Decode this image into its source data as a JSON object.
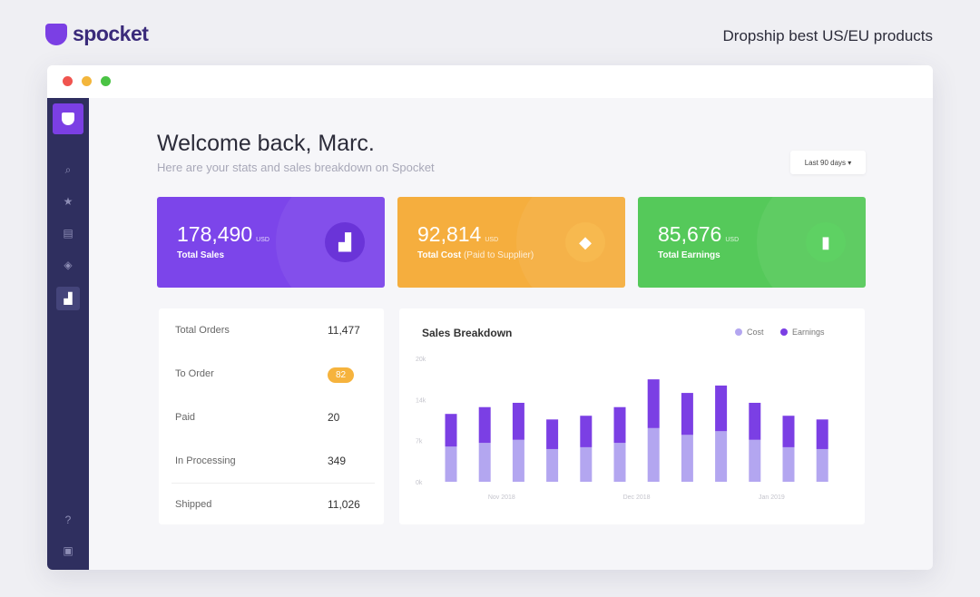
{
  "brand": {
    "name": "spocket",
    "tagline": "Dropship best US/EU products"
  },
  "sidebar": {
    "items": [
      {
        "icon": "search-icon"
      },
      {
        "icon": "star-icon"
      },
      {
        "icon": "catalog-icon"
      },
      {
        "icon": "tag-icon"
      },
      {
        "icon": "chart-icon",
        "active": true
      },
      {
        "icon": "help-icon"
      },
      {
        "icon": "store-icon"
      }
    ]
  },
  "header": {
    "title": "Welcome back, Marc.",
    "subtitle": "Here are your stats and sales breakdown on Spocket",
    "range": "Last 90 days ▾"
  },
  "cards": [
    {
      "value": "178,490",
      "unit": "USD",
      "label": "Total Sales",
      "note": "",
      "color": "#7c45ea",
      "icon": "bar-chart-icon"
    },
    {
      "value": "92,814",
      "unit": "USD",
      "label": "Total Cost",
      "note": "(Paid to Supplier)",
      "color": "#f5ae3e",
      "icon": "tag-icon"
    },
    {
      "value": "85,676",
      "unit": "USD",
      "label": "Total Earnings",
      "note": "",
      "color": "#55c95a",
      "icon": "wallet-icon"
    }
  ],
  "orders": [
    {
      "label": "Total Orders",
      "value": "11,477"
    },
    {
      "label": "To Order",
      "value": "82",
      "badge": true
    },
    {
      "label": "Paid",
      "value": "20"
    },
    {
      "label": "In Processing",
      "value": "349"
    },
    {
      "label": "Shipped",
      "value": "11,026"
    }
  ],
  "chart_data": {
    "type": "bar",
    "stacked": true,
    "title": "Sales Breakdown",
    "legend": "top-right",
    "yticks": [
      "0k",
      "7k",
      "14k",
      "20k"
    ],
    "ylim": [
      0,
      20
    ],
    "xlabels": [
      {
        "label": "Nov 2018",
        "index": 1.5
      },
      {
        "label": "Dec 2018",
        "index": 5.5
      },
      {
        "label": "Jan 2019",
        "index": 9.5
      }
    ],
    "series": [
      {
        "name": "Cost",
        "color": "#b3a6f0",
        "values": [
          5.7,
          6.3,
          6.8,
          5.3,
          5.6,
          6.3,
          8.7,
          7.6,
          8.2,
          6.8,
          5.6,
          5.3
        ]
      },
      {
        "name": "Earnings",
        "color": "#7b3fe4",
        "values": [
          5.3,
          5.8,
          6.0,
          4.8,
          5.1,
          5.8,
          7.9,
          6.8,
          7.4,
          6.0,
          5.1,
          4.8
        ]
      }
    ]
  }
}
